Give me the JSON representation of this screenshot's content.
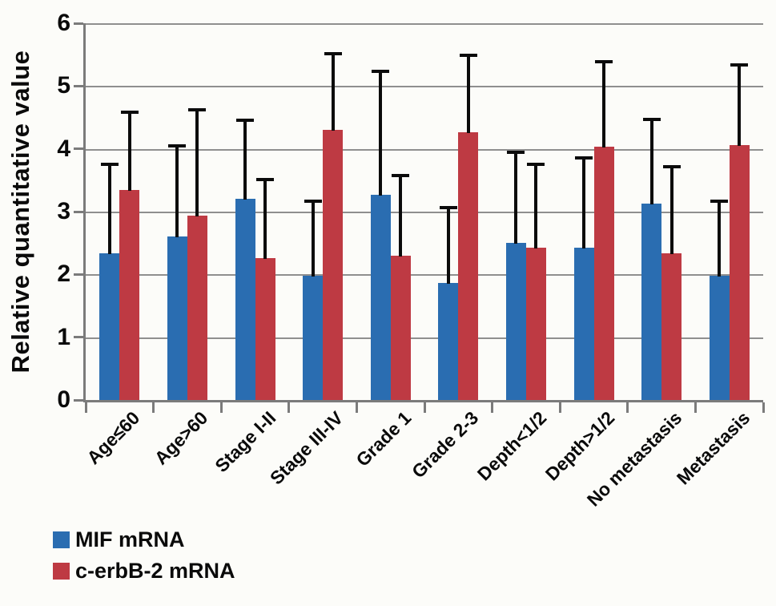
{
  "chart_data": {
    "type": "bar",
    "title": "",
    "xlabel": "",
    "ylabel": "Relative quantitative value",
    "ylim": [
      0,
      6
    ],
    "yticks": [
      0,
      1,
      2,
      3,
      4,
      5,
      6
    ],
    "grid": true,
    "error_bars": "upper",
    "legend_position": "bottom-left",
    "categories": [
      "Age≤60",
      "Age>60",
      "Stage I-II",
      "Stage III-IV",
      "Grade 1",
      "Grade 2-3",
      "Depth<1/2",
      "Depth>1/2",
      "No metastasis",
      "Metastasis"
    ],
    "series": [
      {
        "name": "MIF mRNA",
        "color": "#2a6db1",
        "values": [
          2.33,
          2.6,
          3.2,
          1.98,
          3.27,
          1.87,
          2.5,
          2.43,
          3.13,
          1.98
        ],
        "error_top": [
          3.75,
          4.05,
          4.46,
          3.17,
          5.23,
          3.07,
          3.95,
          3.86,
          4.47,
          3.17
        ]
      },
      {
        "name": "c-erbB-2 mRNA",
        "color": "#be3a43",
        "values": [
          3.35,
          2.93,
          2.26,
          4.3,
          2.3,
          4.26,
          2.43,
          4.03,
          2.33,
          4.06
        ],
        "error_top": [
          4.58,
          4.62,
          3.51,
          5.51,
          3.57,
          5.49,
          3.75,
          5.39,
          3.71,
          5.33
        ]
      }
    ],
    "colors": {
      "grid": "#8f8f8f",
      "axis": "#7b7b7b",
      "error_bar": "#0b0b0b",
      "text": "#0a0a0a",
      "background": "#fcfcf9"
    }
  }
}
